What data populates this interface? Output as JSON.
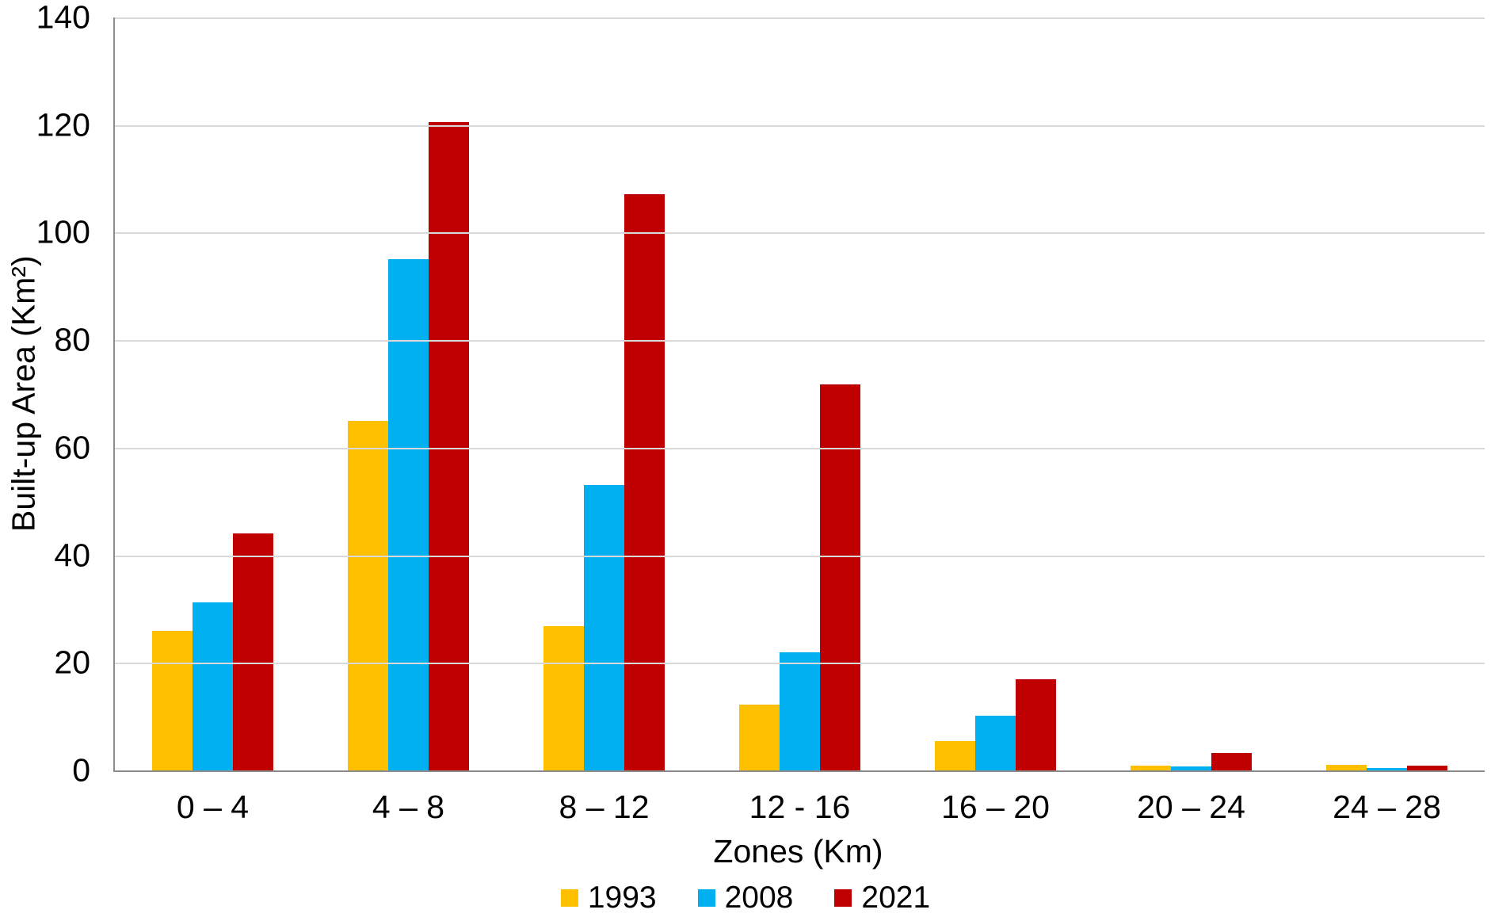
{
  "chart_data": {
    "type": "bar",
    "title": "",
    "xlabel": "Zones (Km)",
    "ylabel": "Built-up Area (Km²)",
    "categories": [
      "0 – 4",
      "4 – 8",
      "8 – 12",
      "12 - 16",
      "16 – 20",
      "20 – 24",
      "24 – 28"
    ],
    "series": [
      {
        "name": "1993",
        "color": "#FFC000",
        "values": [
          26.0,
          65.0,
          26.8,
          12.3,
          5.4,
          0.9,
          1.0
        ]
      },
      {
        "name": "2008",
        "color": "#00B0F0",
        "values": [
          31.2,
          95.0,
          53.0,
          21.9,
          10.2,
          0.8,
          0.4
        ]
      },
      {
        "name": "2021",
        "color": "#C00000",
        "values": [
          44.0,
          120.6,
          107.2,
          71.8,
          17.0,
          3.3,
          0.9
        ]
      }
    ],
    "ylim": [
      0,
      140
    ],
    "yticks": [
      0,
      20,
      40,
      60,
      80,
      100,
      120,
      140
    ],
    "grid": true,
    "legend_position": "bottom"
  },
  "colors": {
    "background": "#FFFFFF",
    "gridline": "#D9D9D9",
    "axis_line": "#8C8C8C",
    "text": "#000000"
  }
}
